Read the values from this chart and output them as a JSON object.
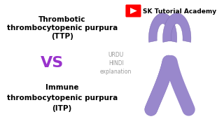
{
  "background_color": "#ffffff",
  "title_text": "SK Tutorial Academy",
  "ttp_lines": [
    "Thrombotic",
    "thrombocytopenic purpura",
    "(TTP)"
  ],
  "vs_text": "VS",
  "itp_lines": [
    "Immune",
    "thrombocytopenic purpura",
    "(ITP)"
  ],
  "urdu_hindi_lines": [
    "URDU",
    "HINDI",
    "explanation"
  ],
  "ttp_color": "#000000",
  "vs_color": "#9933cc",
  "itp_color": "#000000",
  "urdu_color": "#999999",
  "title_color": "#000000",
  "youtube_red": "#ff0000",
  "ribbon_fill": "#9988cc",
  "ribbon_edge": "#7766aa",
  "ttp_fontsize": 7.5,
  "vs_fontsize": 16,
  "itp_fontsize": 7.5,
  "urdu_fontsize": 5.5,
  "title_fontsize": 6.5
}
